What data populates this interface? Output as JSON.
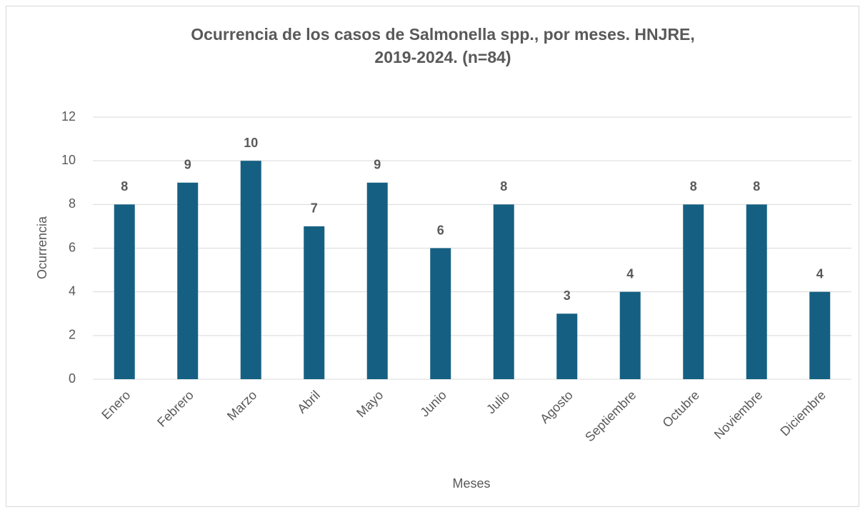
{
  "chart_data": {
    "type": "bar",
    "title": "Ocurrencia de los casos de Salmonella spp., por meses. HNJRE, 2019-2024. (n=84)",
    "x_label": "Meses",
    "y_label": "Ocurrencia",
    "categories": [
      "Enero",
      "Febrero",
      "Marzo",
      "Abril",
      "Mayo",
      "Junio",
      "Julio",
      "Agosto",
      "Septiembre",
      "Octubre",
      "Noviembre",
      "Diciembre"
    ],
    "values": [
      8,
      9,
      10,
      7,
      9,
      6,
      8,
      3,
      4,
      8,
      8,
      4
    ],
    "color": "#156082",
    "ylim": [
      0,
      12
    ],
    "yticks": [
      0,
      2,
      4,
      6,
      8,
      10,
      12
    ],
    "grid": true
  }
}
